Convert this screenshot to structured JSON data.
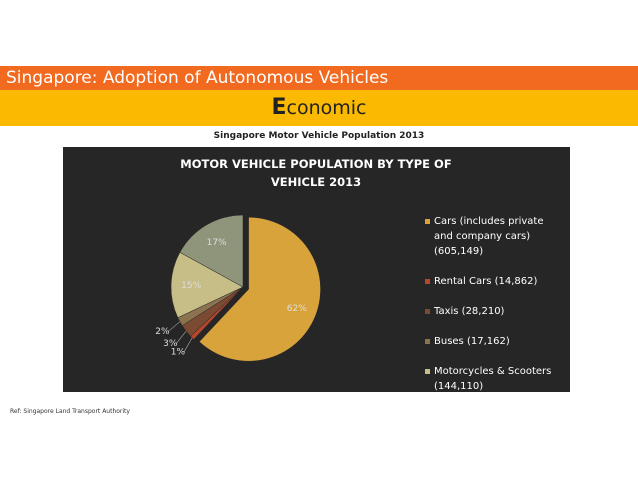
{
  "header": {
    "title": "Singapore: Adoption of Autonomous Vehicles",
    "section": "Economic"
  },
  "chart_data": {
    "type": "pie",
    "caption": "Singapore Motor Vehicle Population 2013",
    "title": "MOTOR VEHICLE POPULATION BY TYPE OF VEHICLE 2013",
    "categories": [
      "Cars (includes private and company cars) (605,149)",
      "Rental Cars (14,862)",
      "Taxis (28,210)",
      "Buses (17,162)",
      "Motorcycles & Scooters (144,110)",
      null
    ],
    "values": [
      62,
      1,
      3,
      2,
      15,
      17
    ],
    "value_labels": [
      "62%",
      "1%",
      "3%",
      "2%",
      "15%",
      "17%"
    ],
    "colors": [
      "#d9a33b",
      "#b4472c",
      "#7a4a33",
      "#8c7350",
      "#c7bd86",
      "#8f957a"
    ],
    "legend": "right"
  },
  "footer": {
    "source": "Ref: Singapore Land Transport Authority"
  }
}
